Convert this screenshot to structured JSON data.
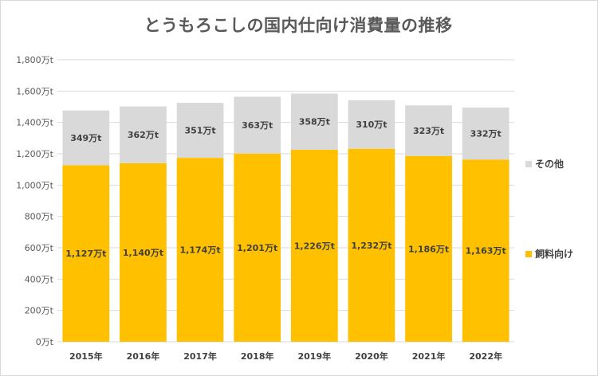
{
  "chart_data": {
    "type": "bar",
    "stacked": true,
    "title": "とうもろこしの国内仕向け消費量の推移",
    "categories": [
      "2015年",
      "2016年",
      "2017年",
      "2018年",
      "2019年",
      "2020年",
      "2021年",
      "2022年"
    ],
    "series": [
      {
        "name": "飼料向け",
        "color": "#ffc000",
        "values": [
          1127,
          1140,
          1174,
          1201,
          1226,
          1232,
          1186,
          1163
        ],
        "labels": [
          "1,127万t",
          "1,140万t",
          "1,174万t",
          "1,201万t",
          "1,226万t",
          "1,232万t",
          "1,186万t",
          "1,163万t"
        ]
      },
      {
        "name": "その他",
        "color": "#d9d9d9",
        "values": [
          349,
          362,
          351,
          363,
          358,
          310,
          323,
          332
        ],
        "labels": [
          "349万t",
          "362万t",
          "351万t",
          "363万t",
          "358万t",
          "310万t",
          "323万t",
          "332万t"
        ]
      }
    ],
    "ylim": [
      0,
      1800
    ],
    "yticks": [
      0,
      200,
      400,
      600,
      800,
      1000,
      1200,
      1400,
      1600,
      1800
    ],
    "ytick_labels": [
      "0万t",
      "200万t",
      "400万t",
      "600万t",
      "800万t",
      "1,000万t",
      "1,200万t",
      "1,400万t",
      "1,600万t",
      "1,800万t"
    ],
    "xlabel": "",
    "ylabel": "",
    "grid": true,
    "legend_position": "right"
  }
}
